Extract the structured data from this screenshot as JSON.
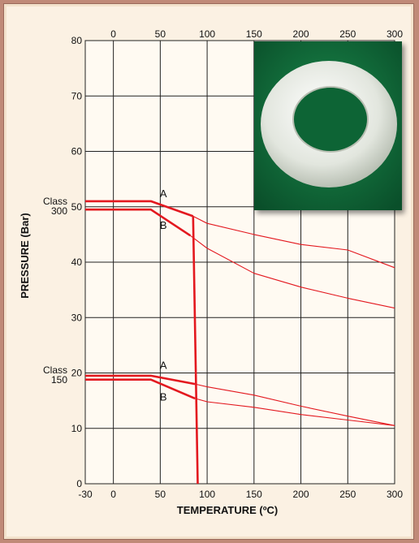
{
  "chart_data": {
    "type": "line",
    "xlabel": "TEMPERATURE (ºC)",
    "ylabel": "PRESSURE (Bar)",
    "xlim": [
      -30,
      300
    ],
    "ylim": [
      0,
      80
    ],
    "x_ticks_bottom": [
      -30,
      0,
      50,
      100,
      150,
      200,
      250,
      300
    ],
    "x_ticks_top": [
      0,
      50,
      100,
      150,
      200,
      250,
      300
    ],
    "y_ticks": [
      0,
      10,
      20,
      30,
      40,
      50,
      60,
      70,
      80
    ],
    "grid": true,
    "class_labels": [
      {
        "text": "Class\n300",
        "y": 50
      },
      {
        "text": "Class\n150",
        "y": 19.5
      }
    ],
    "curve_letters": [
      {
        "text": "A",
        "x": 47,
        "y": 51.3
      },
      {
        "text": "B",
        "x": 47,
        "y": 45.6
      },
      {
        "text": "A",
        "x": 47,
        "y": 20.3
      },
      {
        "text": "B",
        "x": 47,
        "y": 14.6
      }
    ],
    "series": [
      {
        "values": [
          [
            -30,
            51
          ],
          [
            40,
            51
          ],
          [
            85,
            48.3
          ]
        ],
        "bold": true
      },
      {
        "values": [
          [
            85,
            48.3
          ],
          [
            100,
            47
          ],
          [
            150,
            45
          ],
          [
            200,
            43.2
          ],
          [
            250,
            42.2
          ],
          [
            300,
            39
          ]
        ],
        "bold": false
      },
      {
        "values": [
          [
            -30,
            49.5
          ],
          [
            40,
            49.5
          ],
          [
            82,
            44.8
          ]
        ],
        "bold": true
      },
      {
        "values": [
          [
            82,
            44.8
          ],
          [
            100,
            42.5
          ],
          [
            150,
            38
          ],
          [
            200,
            35.5
          ],
          [
            250,
            33.5
          ],
          [
            300,
            31.7
          ]
        ],
        "bold": false
      },
      {
        "values": [
          [
            -30,
            19.5
          ],
          [
            40,
            19.5
          ],
          [
            87,
            18
          ]
        ],
        "bold": true
      },
      {
        "values": [
          [
            87,
            18
          ],
          [
            100,
            17.5
          ],
          [
            150,
            16
          ],
          [
            200,
            14
          ],
          [
            250,
            12.2
          ],
          [
            300,
            10.5
          ]
        ],
        "bold": false
      },
      {
        "values": [
          [
            -30,
            18.8
          ],
          [
            40,
            18.8
          ],
          [
            87,
            15.4
          ]
        ],
        "bold": true
      },
      {
        "values": [
          [
            87,
            15.4
          ],
          [
            100,
            14.8
          ],
          [
            150,
            13.8
          ],
          [
            200,
            12.5
          ],
          [
            250,
            11.5
          ],
          [
            300,
            10.5
          ]
        ],
        "bold": false
      },
      {
        "values": [
          [
            85,
            48.3
          ],
          [
            90,
            0
          ]
        ],
        "bold": true
      }
    ],
    "line_color": "#e3181f"
  },
  "photo": {
    "background_color": "#0f6b3a",
    "ring_color": "#e8ebe4"
  }
}
